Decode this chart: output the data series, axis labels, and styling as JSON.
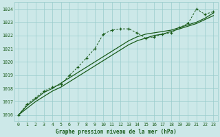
{
  "title": "Graphe pression niveau de la mer (hPa)",
  "bg_color": "#cce8e8",
  "grid_color": "#99cccc",
  "line_color": "#1a5c1a",
  "x_values": [
    0,
    1,
    2,
    3,
    4,
    5,
    6,
    7,
    8,
    9,
    10,
    11,
    12,
    13,
    14,
    15,
    16,
    17,
    18,
    19,
    20,
    21,
    22,
    23
  ],
  "ylim": [
    1015.5,
    1024.5
  ],
  "yticks": [
    1016,
    1017,
    1018,
    1019,
    1020,
    1021,
    1022,
    1023,
    1024
  ],
  "dotted_y": [
    1016.0,
    1016.8,
    1017.3,
    1017.8,
    1018.1,
    1018.3,
    1019.0,
    1019.6,
    1020.3,
    1021.0,
    1022.1,
    1022.4,
    1022.5,
    1022.5,
    1022.2,
    1021.8,
    1021.9,
    1022.1,
    1022.2,
    1022.6,
    1022.9,
    1024.0,
    1023.6,
    1023.8
  ],
  "smooth1_y": [
    1016.0,
    1016.7,
    1017.2,
    1017.7,
    1018.0,
    1018.4,
    1018.8,
    1019.2,
    1019.6,
    1020.0,
    1020.4,
    1020.8,
    1021.2,
    1021.6,
    1021.9,
    1022.1,
    1022.2,
    1022.3,
    1022.4,
    1022.6,
    1022.8,
    1023.0,
    1023.3,
    1023.7
  ],
  "smooth2_y": [
    1016.0,
    1016.5,
    1017.0,
    1017.4,
    1017.8,
    1018.1,
    1018.5,
    1018.9,
    1019.3,
    1019.7,
    1020.1,
    1020.5,
    1020.9,
    1021.3,
    1021.6,
    1021.8,
    1022.0,
    1022.1,
    1022.3,
    1022.5,
    1022.7,
    1022.9,
    1023.2,
    1023.5
  ],
  "title_fontsize": 5.5,
  "tick_fontsize": 4.8
}
